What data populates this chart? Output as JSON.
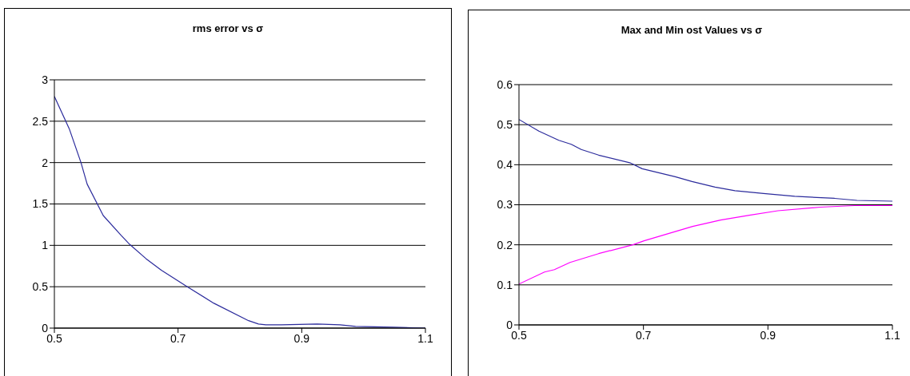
{
  "chart_data": [
    {
      "type": "line",
      "title": "rms error vs σ",
      "xlim": [
        0.5,
        1.1
      ],
      "xticks": [
        0.5,
        0.7,
        0.9,
        1.1
      ],
      "ylim": [
        0,
        3
      ],
      "yticks": [
        0,
        0.5,
        1,
        1.5,
        2,
        2.5,
        3
      ],
      "grid": "y",
      "marker": "none",
      "series": [
        {
          "color": "#2b2b9c",
          "x": [
            0.5,
            0.524,
            0.543,
            0.553,
            0.579,
            0.608,
            0.622,
            0.648,
            0.673,
            0.715,
            0.758,
            0.814,
            0.83,
            0.842,
            0.867,
            0.925,
            0.962,
            0.987,
            1.049,
            1.1
          ],
          "values": [
            2.8,
            2.41,
            2.0,
            1.74,
            1.36,
            1.12,
            1.01,
            0.84,
            0.7,
            0.5,
            0.3,
            0.09,
            0.05,
            0.04,
            0.04,
            0.05,
            0.04,
            0.02,
            0.01,
            0
          ]
        }
      ]
    },
    {
      "type": "line",
      "title": "Max and Min ost Values vs σ",
      "xlim": [
        0.5,
        1.1
      ],
      "xticks": [
        0.5,
        0.7,
        0.9,
        1.1
      ],
      "ylim": [
        0,
        0.6
      ],
      "yticks": [
        0,
        0.1,
        0.2,
        0.3,
        0.4,
        0.5,
        0.6
      ],
      "grid": "y",
      "marker": "none",
      "series": [
        {
          "color": "#2b2b9c",
          "x": [
            0.5,
            0.532,
            0.564,
            0.584,
            0.6,
            0.628,
            0.678,
            0.698,
            0.751,
            0.778,
            0.815,
            0.847,
            0.893,
            0.943,
            1.007,
            1.043,
            1.1
          ],
          "values": [
            0.513,
            0.484,
            0.461,
            0.451,
            0.438,
            0.424,
            0.405,
            0.39,
            0.37,
            0.358,
            0.344,
            0.335,
            0.328,
            0.321,
            0.316,
            0.311,
            0.309
          ]
        },
        {
          "color": "#ff00ff",
          "x": [
            0.5,
            0.541,
            0.557,
            0.582,
            0.628,
            0.683,
            0.701,
            0.779,
            0.824,
            0.87,
            0.916,
            0.984,
            1.039,
            1.1
          ],
          "values": [
            0.102,
            0.132,
            0.138,
            0.156,
            0.178,
            0.2,
            0.21,
            0.246,
            0.262,
            0.274,
            0.285,
            0.294,
            0.298,
            0.298
          ]
        }
      ]
    }
  ]
}
